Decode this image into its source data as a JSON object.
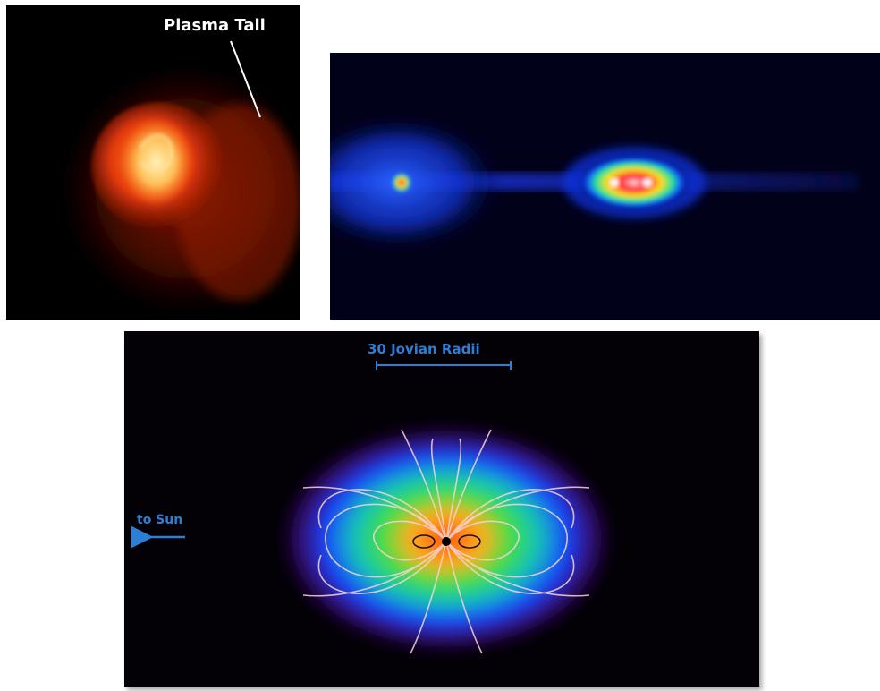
{
  "panels": {
    "comet": {
      "label": "Plasma Tail",
      "colors": {
        "core": "#ffd98a",
        "glow": "#e2410a",
        "halo": "#7a1405"
      }
    },
    "spectrum": {
      "colors": {
        "background": "#02011a",
        "outer": "#1f3cff",
        "mid": "#00e0a0",
        "hot": "#ff2a2a"
      }
    },
    "magnetosphere": {
      "scale_label": "30 Jovian Radii",
      "direction_label": "to Sun",
      "colors": {
        "label": "#2b7fd6",
        "field_lines": "#f3d6d6",
        "core": "#ff6a2a"
      }
    }
  }
}
